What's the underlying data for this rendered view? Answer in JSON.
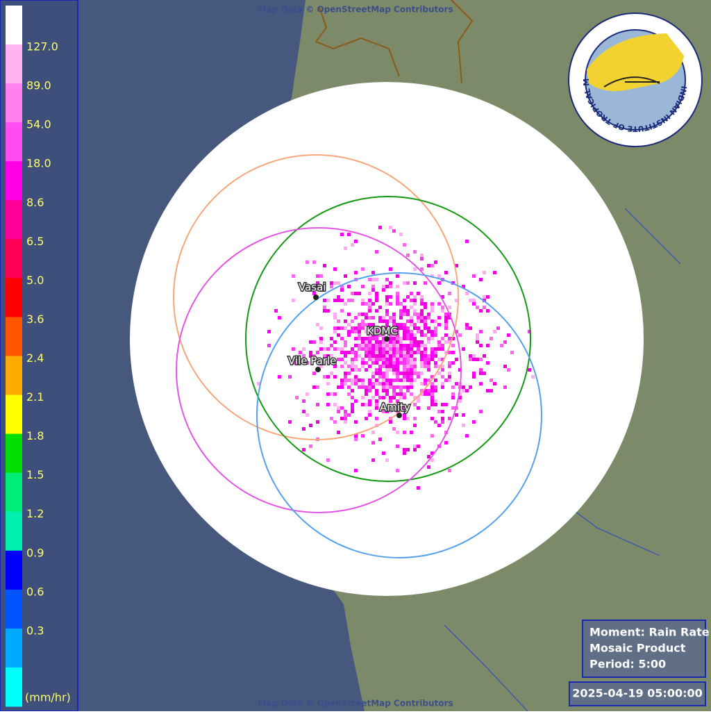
{
  "legend": {
    "labels": [
      "127.0",
      "89.0",
      "54.0",
      "18.0",
      "8.6",
      "6.5",
      "5.0",
      "3.6",
      "2.4",
      "2.1",
      "1.8",
      "1.5",
      "1.2",
      "0.9",
      "0.6",
      "0.3"
    ],
    "unit": "(mm/hr)",
    "colors": [
      "#ffffff",
      "#ffb3f2",
      "#ff80f0",
      "#ff4df2",
      "#ff00e6",
      "#ff0099",
      "#ff0055",
      "#ff0000",
      "#ff5500",
      "#ffaa00",
      "#ffff00",
      "#00dd00",
      "#00ee77",
      "#00f0b0",
      "#0000ff",
      "#0055ff",
      "#00aaff",
      "#00ffff"
    ]
  },
  "stations": [
    {
      "name": "Vasai"
    },
    {
      "name": "KDMC"
    },
    {
      "name": "Vile Parle"
    },
    {
      "name": "Amity"
    }
  ],
  "attribution": "Map Data © OpenStreetMap Contributors",
  "logo": "INDIAN INSTITUTE OF TROPICAL METEOROLOGY PUNE",
  "info": {
    "moment": "Moment: Rain Rate",
    "product": "Mosaic Product",
    "period": "Period: 5:00",
    "datetime": "2025-04-19 05:00:00"
  }
}
